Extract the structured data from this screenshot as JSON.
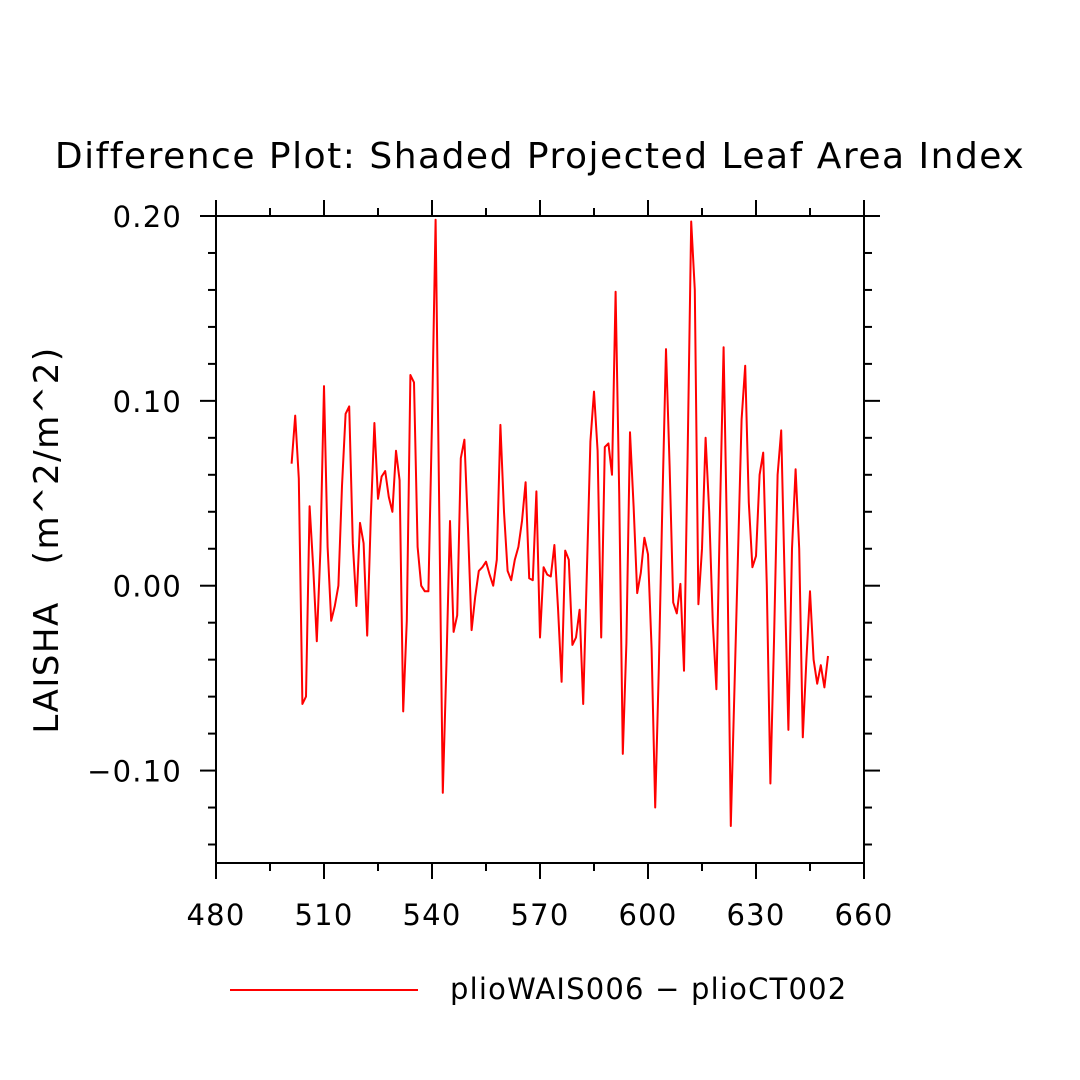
{
  "chart_data": {
    "type": "line",
    "title": "Difference Plot: Shaded Projected Leaf Area Index",
    "ylabel": "LAISHA   (m^2/m^2)",
    "xlabel": "",
    "xlim": [
      480,
      660
    ],
    "ylim": [
      -0.15,
      0.2
    ],
    "x_ticks": [
      480,
      510,
      540,
      570,
      600,
      630,
      660
    ],
    "x_tick_labels": [
      "480",
      "510",
      "540",
      "570",
      "600",
      "630",
      "660"
    ],
    "y_ticks": [
      -0.1,
      0.0,
      0.1,
      0.2
    ],
    "y_tick_labels": [
      "−0.10",
      "0.00",
      "0.10",
      "0.20"
    ],
    "legend_position": "bottom",
    "grid": false,
    "series": [
      {
        "name": "plioWAIS006 − plioCT002",
        "color": "#ff0000",
        "x_start": 501,
        "x_step": 1,
        "values": [
          0.066,
          0.092,
          0.058,
          -0.064,
          -0.06,
          0.043,
          0.01,
          -0.03,
          0.019,
          0.108,
          0.021,
          -0.019,
          -0.011,
          0.0,
          0.054,
          0.093,
          0.097,
          0.023,
          -0.011,
          0.034,
          0.023,
          -0.027,
          0.037,
          0.088,
          0.047,
          0.059,
          0.062,
          0.048,
          0.04,
          0.073,
          0.057,
          -0.068,
          -0.019,
          0.114,
          0.11,
          0.021,
          0.0,
          -0.003,
          -0.003,
          0.089,
          0.198,
          0.043,
          -0.112,
          -0.043,
          0.035,
          -0.025,
          -0.016,
          0.069,
          0.079,
          0.031,
          -0.024,
          -0.006,
          0.008,
          0.01,
          0.013,
          0.006,
          0.0,
          0.014,
          0.087,
          0.04,
          0.008,
          0.003,
          0.014,
          0.021,
          0.035,
          0.056,
          0.004,
          0.003,
          0.051,
          -0.028,
          0.01,
          0.006,
          0.005,
          0.022,
          -0.012,
          -0.052,
          0.019,
          0.014,
          -0.032,
          -0.028,
          -0.013,
          -0.064,
          0.006,
          0.078,
          0.105,
          0.073,
          -0.028,
          0.075,
          0.077,
          0.06,
          0.159,
          0.05,
          -0.091,
          -0.031,
          0.083,
          0.043,
          -0.004,
          0.007,
          0.026,
          0.017,
          -0.034,
          -0.12,
          -0.045,
          0.045,
          0.128,
          0.065,
          -0.009,
          -0.015,
          0.001,
          -0.046,
          0.07,
          0.197,
          0.16,
          -0.01,
          0.02,
          0.08,
          0.04,
          -0.02,
          -0.056,
          0.04,
          0.129,
          0.02,
          -0.13,
          -0.057,
          0.017,
          0.09,
          0.119,
          0.045,
          0.01,
          0.016,
          0.06,
          0.072,
          0.0,
          -0.107,
          -0.03,
          0.06,
          0.084,
          0.0,
          -0.078,
          0.02,
          0.063,
          0.02,
          -0.082,
          -0.04,
          -0.003,
          -0.04,
          -0.053,
          -0.043,
          -0.055,
          -0.038
        ]
      }
    ]
  }
}
